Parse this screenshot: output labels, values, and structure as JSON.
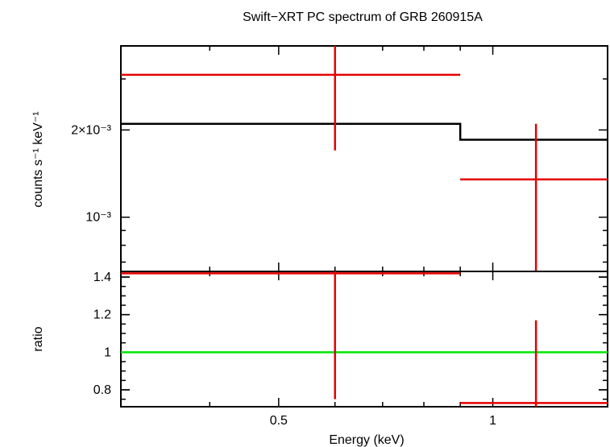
{
  "chart_data": [
    {
      "panel": "spectrum",
      "type": "line",
      "title": "Swift−XRT PC spectrum of GRB 260915A",
      "xlabel": "",
      "ylabel": "counts s⁻¹ keV⁻¹",
      "xscale": "log",
      "yscale": "log",
      "xlim": [
        0.3,
        1.45
      ],
      "ylim": [
        0.00065,
        0.0039
      ],
      "ytick_labels": [
        {
          "value": 0.002,
          "label": "2×10⁻³"
        },
        {
          "value": 0.001,
          "label": "10⁻³"
        }
      ],
      "data_points": [
        {
          "x": 0.6,
          "x_lo": 0.3,
          "x_hi": 0.9,
          "y": 0.0031,
          "y_lo": 0.0017,
          "y_hi": 0.0039,
          "color": "#e60000"
        },
        {
          "x": 1.15,
          "x_lo": 0.9,
          "x_hi": 1.45,
          "y": 0.00135,
          "y_lo": 0.00065,
          "y_hi": 0.0021,
          "color": "#e60000"
        }
      ],
      "model": [
        {
          "x_lo": 0.3,
          "x_hi": 0.9,
          "y": 0.0021
        },
        {
          "x_lo": 0.9,
          "x_hi": 1.45,
          "y": 0.00185
        }
      ],
      "model_color": "#000000"
    },
    {
      "panel": "ratio",
      "type": "line",
      "xlabel": "Energy (keV)",
      "ylabel": "ratio",
      "xscale": "log",
      "xlim": [
        0.3,
        1.45
      ],
      "ylim": [
        0.71,
        1.43
      ],
      "xtick_labels": [
        {
          "value": 0.5,
          "label": "0.5"
        },
        {
          "value": 1,
          "label": "1"
        }
      ],
      "ytick_labels": [
        {
          "value": 1.4,
          "label": "1.4"
        },
        {
          "value": 1.2,
          "label": "1.2"
        },
        {
          "value": 1,
          "label": "1"
        },
        {
          "value": 0.8,
          "label": "0.8"
        }
      ],
      "data_points": [
        {
          "x": 0.6,
          "x_lo": 0.3,
          "x_hi": 0.9,
          "y": 1.42,
          "y_lo": 0.75,
          "y_hi": 1.43,
          "color": "#e60000"
        },
        {
          "x": 1.15,
          "x_lo": 0.9,
          "x_hi": 1.45,
          "y": 0.73,
          "y_lo": 0.71,
          "y_hi": 1.17,
          "color": "#e60000"
        }
      ],
      "reference_line": {
        "y": 1,
        "color": "#00e600"
      }
    }
  ]
}
